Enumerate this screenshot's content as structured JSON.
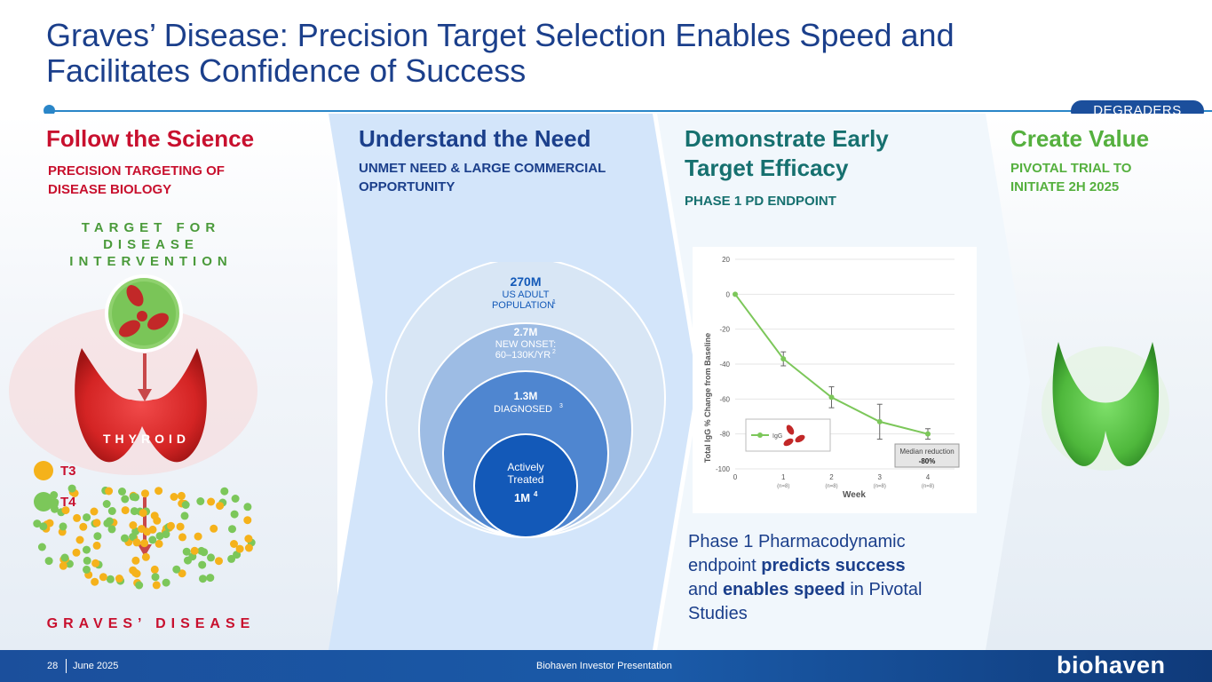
{
  "header": {
    "title_line1": "Graves’ Disease: Precision Target Selection Enables Speed and",
    "title_line2": "Facilitates Confidence of Success",
    "tag": "DEGRADERS"
  },
  "columns": {
    "science": {
      "heading": "Follow the Science",
      "sub_line1": "PRECISION TARGETING OF",
      "sub_line2": "DISEASE BIOLOGY",
      "target_line1": "TARGET FOR",
      "target_line2": "DISEASE",
      "target_line3": "INTERVENTION",
      "thyroid_label": "THYROID",
      "legend": [
        {
          "label": "T3",
          "color": "#f5b21b"
        },
        {
          "label": "T4",
          "color": "#7cc75a"
        }
      ],
      "disease_label": "GRAVES’ DISEASE"
    },
    "need": {
      "heading": "Understand the Need",
      "sub_line1": "UNMET NEED & LARGE COMMERCIAL",
      "sub_line2": "OPPORTUNITY",
      "circles": [
        {
          "value": "270M",
          "line1": "US ADULT",
          "line2": "POPULATION",
          "sup": "1"
        },
        {
          "value": "2.7M",
          "line1": "NEW ONSET:",
          "line2": "60–130K/YR",
          "sup": "2"
        },
        {
          "value": "1.3M",
          "line1": "DIAGNOSED",
          "sup": "3"
        },
        {
          "line1": "Actively",
          "line2": "Treated",
          "value": "1M",
          "sup": "4"
        }
      ]
    },
    "efficacy": {
      "heading_line1": "Demonstrate Early",
      "heading_line2": "Target Efficacy",
      "sub": "PHASE 1 PD ENDPOINT",
      "body_plain1": "Phase 1 Pharmacodynamic",
      "body_plain2": "endpoint ",
      "body_bold1": "predicts success",
      "body_plain3": "and ",
      "body_bold2": "enables speed",
      "body_plain4": " in Pivotal",
      "body_plain5": "Studies"
    },
    "value": {
      "heading": "Create Value",
      "sub_line1": "PIVOTAL TRIAL TO",
      "sub_line2": "INITIATE 2H 2025"
    }
  },
  "chart_data": {
    "type": "line",
    "xlabel": "Week",
    "ylabel": "Total IgG % Change from Baseline",
    "x": [
      0,
      1,
      2,
      3,
      4
    ],
    "x_tick_labels": [
      "0",
      "1",
      "2",
      "3",
      "4"
    ],
    "x_sub_labels": [
      "",
      "(n=8)",
      "(n=8)",
      "(n=8)",
      "(n=8)"
    ],
    "y_ticks": [
      20,
      0,
      -20,
      -40,
      -60,
      -80,
      -100
    ],
    "ylim": [
      -100,
      20
    ],
    "series": [
      {
        "name": "IgG",
        "color": "#7cc75a",
        "values": [
          0,
          -37,
          -59,
          -73,
          -80
        ],
        "errors": [
          0,
          4,
          6,
          10,
          3
        ]
      }
    ],
    "annotation_line1": "Median reduction",
    "annotation_line2": "-80%",
    "grid": true
  },
  "footer": {
    "page": "28",
    "date": "June 2025",
    "center": "Biohaven Investor Presentation",
    "logo": "biohaven"
  },
  "colors": {
    "navy": "#1b3f8b",
    "red": "#c8102e",
    "teal": "#16706f",
    "green": "#55b03e"
  }
}
